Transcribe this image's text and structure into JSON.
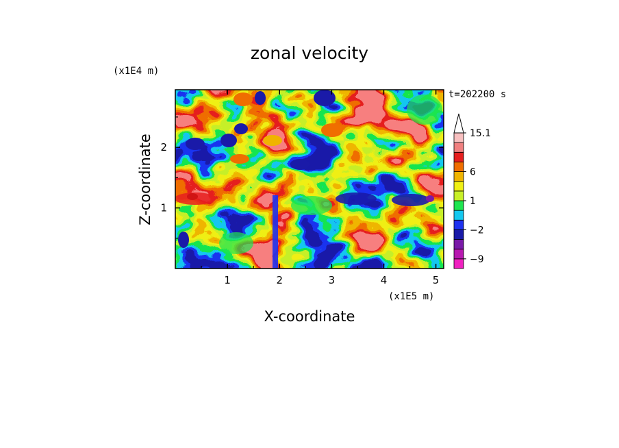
{
  "chart_data": {
    "type": "heatmap",
    "title": "zonal velocity",
    "xlabel": "X-coordinate",
    "ylabel": "Z-coordinate",
    "x_unit_label": "(x1E5 m)",
    "y_unit_label": "(x1E4 m)",
    "time_label": "t=202200 s",
    "xlim": [
      0,
      5.15
    ],
    "ylim": [
      0,
      2.95
    ],
    "x_ticks": [
      1,
      2,
      3,
      4,
      5
    ],
    "y_ticks": [
      1,
      2
    ],
    "x_tick_labels": [
      "1",
      "2",
      "3",
      "4",
      "5"
    ],
    "y_tick_labels": [
      "1",
      "2"
    ],
    "colorbar": {
      "levels": [
        -12,
        -9,
        -6,
        -4,
        -2,
        -1,
        0,
        1,
        2,
        4,
        6,
        9,
        12,
        15.1
      ],
      "colors": [
        "#f020c0",
        "#b818b0",
        "#7a1aa8",
        "#1a1aa8",
        "#1e32f0",
        "#14c8f0",
        "#1ee650",
        "#c8f028",
        "#f0f014",
        "#f0b400",
        "#f06e00",
        "#e61e1e",
        "#f08080",
        "#f8c0c0"
      ],
      "extend_max_color": "#ffffff",
      "labels": [
        {
          "text": "15.1",
          "value": 15.1
        },
        {
          "text": "6",
          "value": 6
        },
        {
          "text": "1",
          "value": 1
        },
        {
          "text": "−2",
          "value": -2
        },
        {
          "text": "−9",
          "value": -9
        }
      ]
    },
    "grid": false
  }
}
